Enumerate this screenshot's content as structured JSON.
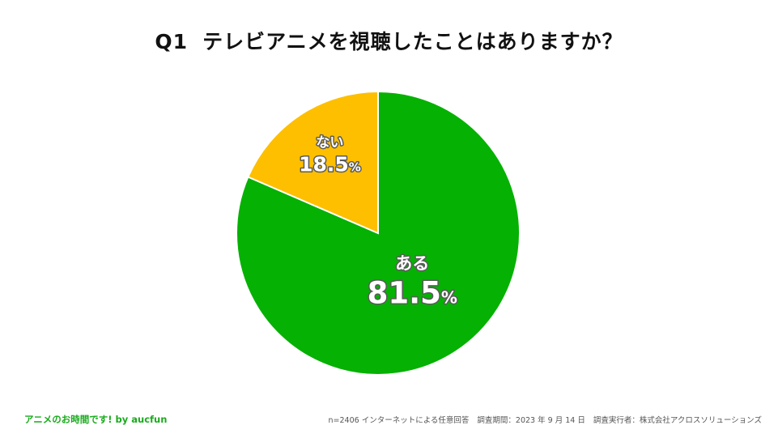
{
  "title": {
    "qnum": "Q1",
    "text": "テレビアニメを視聴したことはありますか？"
  },
  "chart_data": {
    "type": "pie",
    "title": "Q1 テレビアニメを視聴したことはありますか？",
    "unit": "%",
    "start_angle": "12 o'clock, clockwise",
    "slices": [
      {
        "label": "ある",
        "value": 81.5,
        "display": "81.5",
        "color": "#05b103"
      },
      {
        "label": "ない",
        "value": 18.5,
        "display": "18.5",
        "color": "#fdbf00"
      }
    ]
  },
  "footer": {
    "brand": "アニメのお時間です! by aucfun",
    "brand_color": "#1aab1e",
    "sample": "n=2406 インターネットによる任意回答",
    "period": "調査期間：2023 年 9 月 14 日",
    "conductor": "調査実行者：株式会社アクロスソリューションズ"
  }
}
